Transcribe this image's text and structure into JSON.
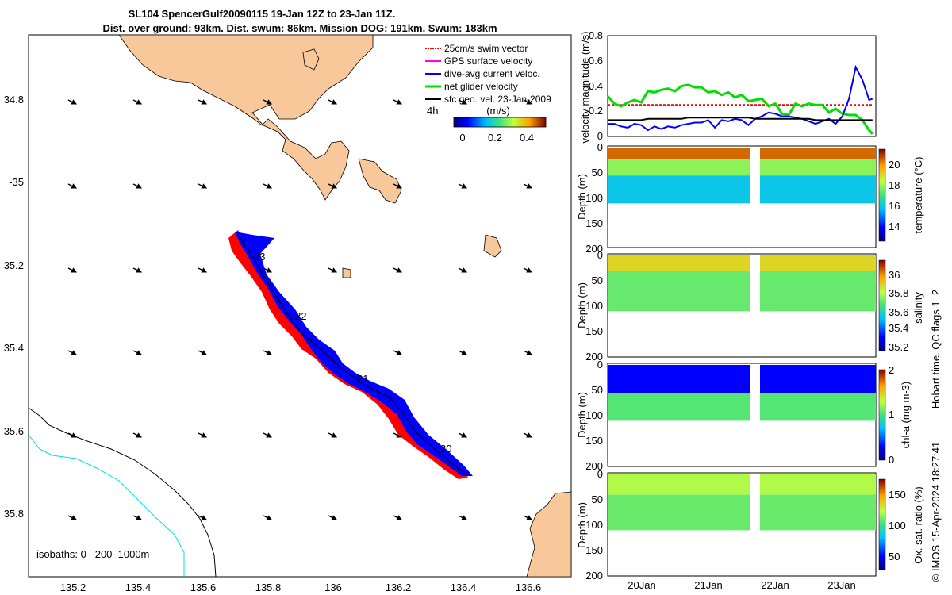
{
  "header": {
    "title_line1": "SL104 SpencerGulf20090115 19-Jan 12Z to 23-Jan 11Z.",
    "title_line2": "Dist. over ground: 93km. Dist. swum: 86km. Mission DOG: 191km. Swum: 183km"
  },
  "colors": {
    "land": "#f8c79a",
    "gps_track": "#ff0000",
    "dive_avg": "#0000ff",
    "net_glider": "#00dd00",
    "isobath_200": "#00e0e0",
    "swim_vector": "#ff0000",
    "gps_surface": "#ff00ff"
  },
  "map": {
    "lon_ticks": [
      "135.2",
      "135.4",
      "135.6",
      "135.8",
      "136",
      "136.2",
      "136.4",
      "136.6"
    ],
    "lat_ticks": [
      "34.8",
      "-35",
      "35.2",
      "35.4",
      "35.6",
      "35.8"
    ],
    "day_labels": [
      "23",
      "22",
      "21",
      "20"
    ],
    "isobaths_label": "isobaths: 0   200  1000m",
    "legend": [
      {
        "label": "25cm/s swim vector",
        "color": "#ff0000"
      },
      {
        "label": "GPS surface velocity",
        "color": "#ff00ff"
      },
      {
        "label": "dive-avg current veloc.",
        "color": "#0000ff"
      },
      {
        "label": "net glider velocity",
        "color": "#00dd00"
      },
      {
        "label": "sfc geo. vel. 23-Jan-2009",
        "color": "#000000"
      }
    ],
    "time_label": "4h",
    "colorbar_title": "(m/s)",
    "colorbar_ticks": [
      "0",
      "0.2",
      "0.4"
    ]
  },
  "chart_data": [
    {
      "type": "line",
      "title": "",
      "xlabel": "",
      "ylabel": "velocity magnitude (m/s)",
      "ylim": [
        0,
        0.8
      ],
      "y_ticks": [
        "0",
        "0.2",
        "0.4",
        "0.6",
        "0.8"
      ],
      "x": [
        19.5,
        19.6,
        19.7,
        19.8,
        19.9,
        20.0,
        20.1,
        20.2,
        20.3,
        20.4,
        20.5,
        20.6,
        20.7,
        20.8,
        20.9,
        21.0,
        21.1,
        21.2,
        21.3,
        21.4,
        21.5,
        21.6,
        21.7,
        21.8,
        21.9,
        22.0,
        22.1,
        22.2,
        22.3,
        22.4,
        22.5,
        22.6,
        22.7,
        22.8,
        22.9,
        23.0,
        23.1,
        23.2,
        23.3,
        23.4,
        23.45
      ],
      "series": [
        {
          "name": "swim vector",
          "color": "#ff0000",
          "values": [
            0.25,
            0.25,
            0.25,
            0.25,
            0.25,
            0.25,
            0.25,
            0.25,
            0.25,
            0.25,
            0.25,
            0.25,
            0.25,
            0.25,
            0.25,
            0.25,
            0.25,
            0.25,
            0.25,
            0.25,
            0.25,
            0.25,
            0.25,
            0.25,
            0.25,
            0.25,
            0.25,
            0.25,
            0.25,
            0.25,
            0.25,
            0.25,
            0.25,
            0.25,
            0.25,
            0.25,
            0.25,
            0.25,
            0.25,
            0.25,
            0.25
          ]
        },
        {
          "name": "net glider velocity",
          "color": "#00dd00",
          "values": [
            0.32,
            0.26,
            0.24,
            0.27,
            0.29,
            0.27,
            0.36,
            0.35,
            0.37,
            0.38,
            0.36,
            0.4,
            0.41,
            0.39,
            0.39,
            0.35,
            0.36,
            0.33,
            0.35,
            0.31,
            0.33,
            0.28,
            0.29,
            0.3,
            0.24,
            0.26,
            0.18,
            0.17,
            0.26,
            0.24,
            0.26,
            0.25,
            0.25,
            0.19,
            0.22,
            0.18,
            0.17,
            0.17,
            0.13,
            0.05,
            0.02
          ]
        },
        {
          "name": "dive-avg current veloc.",
          "color": "#0000ff",
          "values": [
            0.1,
            0.1,
            0.08,
            0.07,
            0.1,
            0.09,
            0.05,
            0.08,
            0.06,
            0.08,
            0.07,
            0.09,
            0.1,
            0.11,
            0.11,
            0.13,
            0.07,
            0.13,
            0.12,
            0.14,
            0.13,
            0.09,
            0.14,
            0.16,
            0.19,
            0.18,
            0.16,
            0.16,
            0.15,
            0.14,
            0.12,
            0.1,
            0.12,
            0.14,
            0.1,
            0.16,
            0.3,
            0.55,
            0.45,
            0.29,
            0.3
          ]
        },
        {
          "name": "sfc geo. vel.",
          "color": "#000000",
          "values": [
            0.13,
            0.13,
            0.13,
            0.13,
            0.13,
            0.13,
            0.14,
            0.14,
            0.14,
            0.14,
            0.14,
            0.14,
            0.15,
            0.15,
            0.15,
            0.15,
            0.15,
            0.15,
            0.15,
            0.15,
            0.15,
            0.15,
            0.14,
            0.14,
            0.14,
            0.14,
            0.14,
            0.14,
            0.14,
            0.14,
            0.14,
            0.13,
            0.13,
            0.13,
            0.13,
            0.13,
            0.13,
            0.13,
            0.13,
            0.13,
            0.13
          ]
        }
      ]
    },
    {
      "type": "heatmap",
      "ylabel": "Depth (m)",
      "depth_ticks": [
        "0",
        "50",
        "100",
        "150",
        "200"
      ],
      "colorbar_label": "temperature (°C)",
      "colorbar_ticks": [
        "14",
        "16",
        "18",
        "20"
      ],
      "clim": [
        13,
        21.5
      ],
      "layers": [
        {
          "from_depth": 0,
          "to_depth": 22,
          "value": 20.5
        },
        {
          "from_depth": 22,
          "to_depth": 55,
          "value": 18.0
        },
        {
          "from_depth": 55,
          "to_depth": 110,
          "value": 16.2
        }
      ]
    },
    {
      "type": "heatmap",
      "ylabel": "Depth (m)",
      "depth_ticks": [
        "0",
        "50",
        "100",
        "150",
        "200"
      ],
      "colorbar_label": "salinity",
      "colorbar_ticks": [
        "35.2",
        "35.4",
        "35.6",
        "35.8",
        "36"
      ],
      "clim": [
        35.1,
        36.2
      ],
      "layers": [
        {
          "from_depth": 0,
          "to_depth": 30,
          "value": 35.9
        },
        {
          "from_depth": 30,
          "to_depth": 110,
          "value": 35.7
        }
      ]
    },
    {
      "type": "heatmap",
      "ylabel": "Depth (m)",
      "depth_ticks": [
        "0",
        "50",
        "100",
        "150",
        "200"
      ],
      "colorbar_label": "chl-a (mg m-3)",
      "colorbar_ticks": [
        "0",
        "1",
        "2"
      ],
      "clim": [
        0,
        2
      ],
      "layers": [
        {
          "from_depth": 0,
          "to_depth": 55,
          "value": 0.3
        },
        {
          "from_depth": 55,
          "to_depth": 110,
          "value": 1.05
        }
      ]
    },
    {
      "type": "heatmap",
      "ylabel": "Depth (m)",
      "depth_ticks": [
        "0",
        "50",
        "100",
        "150",
        "200"
      ],
      "colorbar_label": "Ox. sat. ratio (%)",
      "colorbar_ticks": [
        "50",
        "100",
        "150"
      ],
      "clim": [
        20,
        175
      ],
      "layers": [
        {
          "from_depth": 0,
          "to_depth": 40,
          "value": 118
        },
        {
          "from_depth": 40,
          "to_depth": 110,
          "value": 105
        }
      ]
    }
  ],
  "time_axis": {
    "ticks": [
      "20Jan",
      "21Jan",
      "22Jan",
      "23Jan"
    ]
  },
  "side": {
    "qc_text": "Hobart time. QC flags 1  2",
    "credit_text": "© IMOS 15-Apr-2024 18:27:41"
  }
}
